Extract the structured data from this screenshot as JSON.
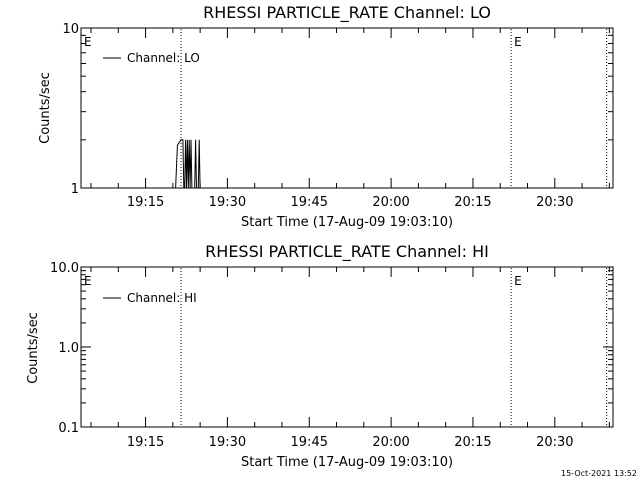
{
  "chart_data": [
    {
      "type": "line",
      "title": "RHESSI PARTICLE_RATE Channel: LO",
      "xlabel": "Start Time (17-Aug-09 19:03:10)",
      "ylabel": "Counts/sec",
      "x_ticks": [
        "19:15",
        "19:30",
        "19:45",
        "20:00",
        "20:15",
        "20:30"
      ],
      "y_ticks": [
        "1",
        "10"
      ],
      "y_scale": "log",
      "ylim": [
        1,
        10
      ],
      "xlim": [
        "19:03:10",
        "20:40:40"
      ],
      "legend": {
        "label": "Channel: LO",
        "placement": "top-left"
      },
      "markers": [
        {
          "label": "E",
          "time": "19:03:10",
          "style": "text"
        },
        {
          "label": "",
          "time": "19:21:30",
          "style": "dotted"
        },
        {
          "label": "E",
          "time": "20:22:00",
          "style": "dotted"
        },
        {
          "label": "",
          "time": "20:39:30",
          "style": "dotted"
        }
      ],
      "series": [
        {
          "name": "Channel: LO",
          "points": [
            [
              "19:20:30",
              1
            ],
            [
              "19:20:50",
              1.85
            ],
            [
              "19:21:30",
              2
            ],
            [
              "19:21:50",
              2
            ],
            [
              "19:22:00",
              1
            ],
            [
              "19:22:10",
              1
            ],
            [
              "19:22:20",
              2
            ],
            [
              "19:22:30",
              1
            ],
            [
              "19:22:40",
              2
            ],
            [
              "19:22:50",
              1
            ],
            [
              "19:23:00",
              2
            ],
            [
              "19:23:10",
              1
            ],
            [
              "19:23:20",
              2
            ],
            [
              "19:23:30",
              1
            ],
            [
              "19:24:00",
              1
            ],
            [
              "19:24:10",
              2
            ],
            [
              "19:24:20",
              1
            ],
            [
              "19:24:40",
              1
            ],
            [
              "19:24:50",
              2
            ],
            [
              "19:25:00",
              1
            ]
          ]
        }
      ]
    },
    {
      "type": "line",
      "title": "RHESSI PARTICLE_RATE Channel: HI",
      "xlabel": "Start Time (17-Aug-09 19:03:10)",
      "ylabel": "Counts/sec",
      "x_ticks": [
        "19:15",
        "19:30",
        "19:45",
        "20:00",
        "20:15",
        "20:30"
      ],
      "y_ticks": [
        "0.1",
        "1.0",
        "10.0"
      ],
      "y_scale": "log",
      "ylim": [
        0.1,
        10
      ],
      "xlim": [
        "19:03:10",
        "20:40:40"
      ],
      "legend": {
        "label": "Channel: HI",
        "placement": "top-left"
      },
      "markers": [
        {
          "label": "E",
          "time": "19:03:10",
          "style": "text"
        },
        {
          "label": "",
          "time": "19:21:30",
          "style": "dotted"
        },
        {
          "label": "E",
          "time": "20:22:00",
          "style": "dotted"
        },
        {
          "label": "",
          "time": "20:39:30",
          "style": "dotted"
        }
      ],
      "series": [
        {
          "name": "Channel: HI",
          "points": []
        }
      ]
    }
  ],
  "footer": {
    "timestamp": "15-Oct-2021 13:52"
  }
}
